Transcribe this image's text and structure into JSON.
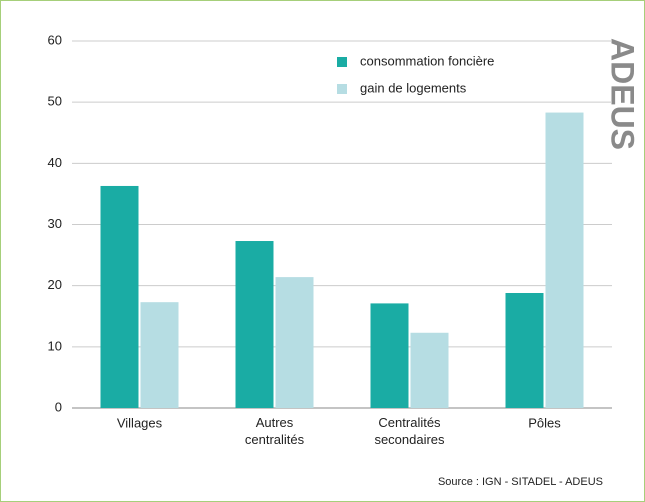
{
  "chart_data": {
    "type": "bar",
    "categories": [
      "Villages",
      "Autres centralités",
      "Centralités secondaires",
      "Pôles"
    ],
    "series": [
      {
        "name": "consommation foncière",
        "color": "#1aaca4",
        "values": [
          36.3,
          27.3,
          17.1,
          18.8
        ]
      },
      {
        "name": "gain de logements",
        "color": "#b6dde3",
        "values": [
          17.3,
          21.4,
          12.3,
          48.3
        ]
      }
    ],
    "ylim": [
      0,
      60
    ],
    "yticks": [
      0,
      10,
      20,
      30,
      40,
      50,
      60
    ],
    "grid": true,
    "watermark": "ADEUS",
    "source": "Source : IGN - SITADEL - ADEUS"
  }
}
